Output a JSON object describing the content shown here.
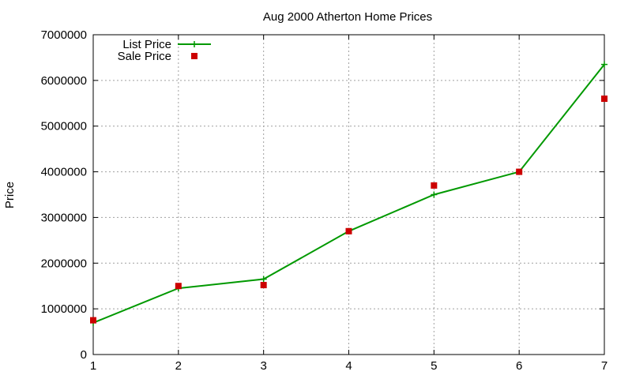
{
  "chart_data": {
    "type": "line",
    "title": "Aug 2000 Atherton Home Prices",
    "xlabel": "",
    "ylabel": "Price",
    "x": [
      1,
      2,
      3,
      4,
      5,
      6,
      7
    ],
    "xlim": [
      1,
      7
    ],
    "ylim": [
      0,
      7000000
    ],
    "x_ticks": [
      "1",
      "2",
      "3",
      "4",
      "5",
      "6",
      "7"
    ],
    "y_ticks": [
      "0",
      "1000000",
      "2000000",
      "3000000",
      "4000000",
      "5000000",
      "6000000",
      "7000000"
    ],
    "grid": true,
    "legend_position": "top-left",
    "series": [
      {
        "name": "List Price",
        "style": "linespoints",
        "marker": "plus",
        "color": "#009900",
        "values": [
          695000,
          1450000,
          1650000,
          2700000,
          3500000,
          4000000,
          6350000
        ]
      },
      {
        "name": "Sale Price",
        "style": "points",
        "marker": "square",
        "color": "#cc0000",
        "values": [
          750000,
          1500000,
          1520000,
          2700000,
          3700000,
          4000000,
          5600000
        ]
      }
    ]
  }
}
